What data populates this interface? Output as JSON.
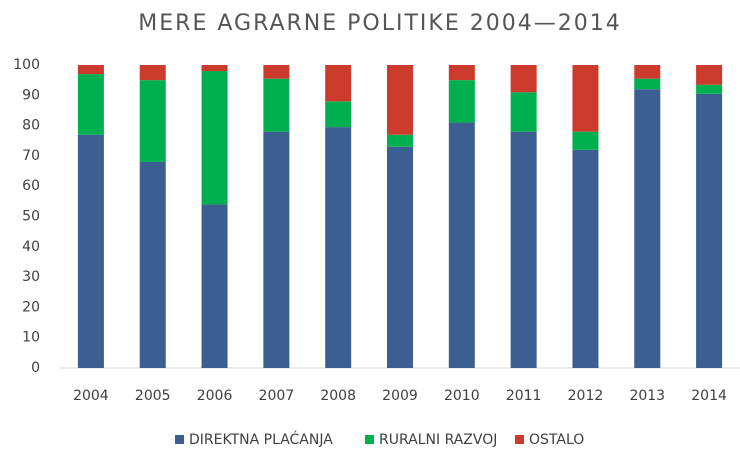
{
  "chart_data": {
    "type": "stacked_bar",
    "title": "MERE AGRARNE POLITIKE 2004—2014",
    "categories": [
      "2004",
      "2005",
      "2006",
      "2007",
      "2008",
      "2009",
      "2010",
      "2011",
      "2012",
      "2013",
      "2014"
    ],
    "series": [
      {
        "name": "DIREKTNA PLAĆANJA",
        "color": "#3b5f91",
        "values": [
          77,
          68,
          54,
          78,
          79.5,
          73,
          81,
          78,
          72,
          92,
          90.5
        ]
      },
      {
        "name": "RURALNI RAZVOJ",
        "color": "#00b050",
        "values": [
          20,
          27,
          44,
          17.5,
          8.5,
          4,
          14,
          13,
          6,
          3.5,
          3
        ]
      },
      {
        "name": "OSTALO",
        "color": "#cc3a2c",
        "values": [
          3,
          5,
          2,
          4.5,
          12,
          23,
          5,
          9,
          22,
          4.5,
          6.5
        ]
      }
    ],
    "ylim": [
      0,
      100
    ],
    "yticks": [
      0,
      10,
      20,
      30,
      40,
      50,
      60,
      70,
      80,
      90,
      100
    ],
    "legend": "bottom"
  }
}
